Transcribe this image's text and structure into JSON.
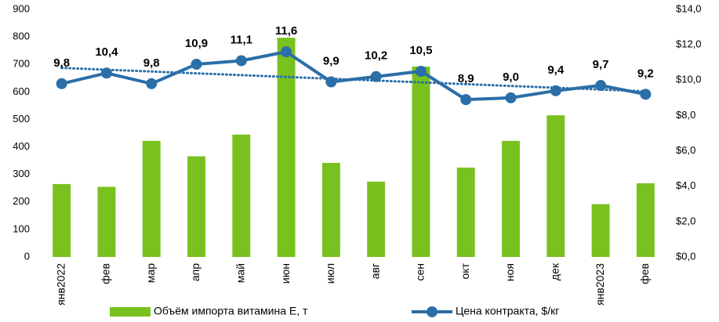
{
  "chart_data": {
    "type": "bar_line",
    "categories": [
      "янв2022",
      "фев",
      "мар",
      "апр",
      "май",
      "июн",
      "июл",
      "авг",
      "сен",
      "окт",
      "ноя",
      "дек",
      "янв2023",
      "фев"
    ],
    "series": [
      {
        "name": "Объём импорта витамина Е, т",
        "type": "bar",
        "color": "#78c11f",
        "values": [
          265,
          255,
          422,
          366,
          445,
          797,
          342,
          274,
          692,
          325,
          422,
          515,
          192,
          268
        ]
      },
      {
        "name": "Цена контракта, $/кг",
        "type": "line",
        "axis": "y2",
        "color": "#2a6fa8",
        "trendline": true,
        "values": [
          9.8,
          10.4,
          9.8,
          10.9,
          11.1,
          11.6,
          9.9,
          10.2,
          10.5,
          8.9,
          9.0,
          9.4,
          9.7,
          9.2
        ],
        "value_labels": [
          "9,8",
          "10,4",
          "9,8",
          "10,9",
          "11,1",
          "11,6",
          "9,9",
          "10,2",
          "10,5",
          "8,9",
          "9,0",
          "9,4",
          "9,7",
          "9,2"
        ]
      }
    ],
    "ylim": [
      0,
      900
    ],
    "yticks": [
      0,
      100,
      200,
      300,
      400,
      500,
      600,
      700,
      800,
      900
    ],
    "y2lim": [
      0,
      14
    ],
    "y2ticks": [
      {
        "value": 0,
        "label": "$0,0"
      },
      {
        "value": 2,
        "label": "$2,0"
      },
      {
        "value": 4,
        "label": "$4,0"
      },
      {
        "value": 6,
        "label": "$6,0"
      },
      {
        "value": 8,
        "label": "$8,0"
      },
      {
        "value": 10,
        "label": "$10,0"
      },
      {
        "value": 12,
        "label": "$12,0"
      },
      {
        "value": 14,
        "label": "$14,0"
      }
    ],
    "grid": false
  }
}
